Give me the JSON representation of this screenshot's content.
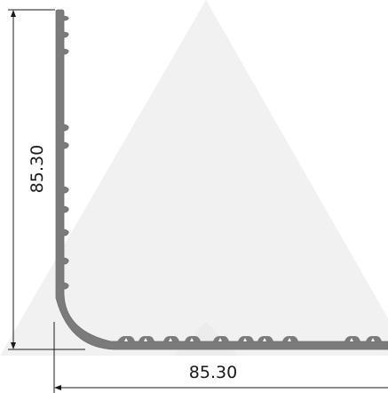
{
  "dimensions": {
    "height_label": "85.30",
    "width_label": "85.30"
  },
  "colors": {
    "profile_fill": "#7b7b7b",
    "profile_edge": "#8a8a8a",
    "watermark": "#f1f1f1",
    "dimension_line": "#1a1a1a"
  }
}
